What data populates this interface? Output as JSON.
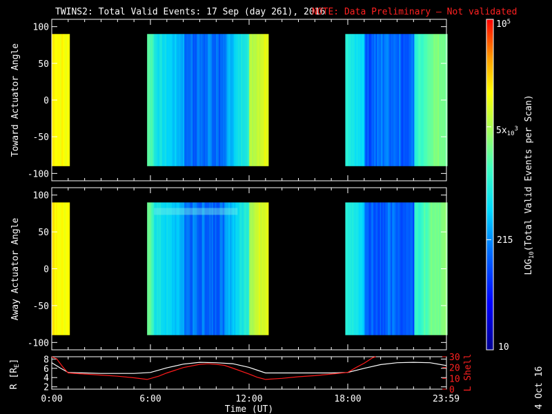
{
  "title": {
    "main": "TWINS2: Total Valid Events: 17 Sep (day 261), 2016",
    "note": "NOTE: Data Preliminary – Not validated"
  },
  "stamp": "4 Oct 16",
  "chart_data": [
    {
      "type": "heatmap",
      "name": "toward",
      "ylabel": "Toward Actuator Angle",
      "ylim": [
        -110,
        110
      ],
      "yticks": [
        100,
        50,
        0,
        -50,
        -100
      ],
      "data_yrange": [
        -90,
        90
      ],
      "xlim": [
        0,
        24
      ],
      "intervals": [
        [
          0,
          1.05
        ],
        [
          5.8,
          13.15
        ],
        [
          17.85,
          24
        ]
      ]
    },
    {
      "type": "heatmap",
      "name": "away",
      "ylabel": "Away Actuator Angle",
      "ylim": [
        -110,
        110
      ],
      "yticks": [
        100,
        50,
        0,
        -50,
        -100
      ],
      "data_yrange": [
        -90,
        90
      ],
      "xlim": [
        0,
        24
      ],
      "intervals": [
        [
          0,
          1.05
        ],
        [
          5.8,
          13.15
        ],
        [
          17.85,
          24
        ]
      ]
    },
    {
      "type": "line",
      "name": "orbit",
      "ylabel_left": "R [R",
      "ylabel_left_sub": "E",
      "ylabel_left_end": "]",
      "ylabel_right": "L Shell",
      "xlabel": "Time (UT)",
      "ylim_left": [
        1.5,
        8.5
      ],
      "yticks_left": [
        8,
        6,
        4,
        2
      ],
      "ylim_right": [
        0,
        30
      ],
      "yticks_right": [
        30,
        20,
        10,
        0
      ],
      "xlim": [
        0,
        24
      ],
      "xtick_labels": [
        "0:00",
        "6:00",
        "12:00",
        "18:00",
        "23:59"
      ],
      "xtick_values": [
        0,
        6,
        12,
        18,
        23.98
      ],
      "series": [
        {
          "axis": "left",
          "color": "#ffffff",
          "x": [
            0,
            0.5,
            1,
            2,
            3,
            4,
            5,
            6,
            7,
            8,
            9,
            10,
            11,
            12,
            12.5,
            13,
            14,
            15,
            16,
            17,
            18,
            19,
            20,
            21,
            22,
            23,
            24
          ],
          "y": [
            7.2,
            6.1,
            5.1,
            5.0,
            4.9,
            4.9,
            4.9,
            5.1,
            6.1,
            6.9,
            7.3,
            7.2,
            7.0,
            6.2,
            5.6,
            5.0,
            5.0,
            5.0,
            5.0,
            5.0,
            5.1,
            6.0,
            6.8,
            7.2,
            7.3,
            7.2,
            6.6
          ]
        },
        {
          "axis": "right",
          "color": "#ff1a1a",
          "x": [
            0,
            0.3,
            0.7,
            1,
            2,
            3,
            4,
            5,
            5.8,
            6.5,
            7,
            8,
            9,
            9.5,
            10,
            10.5,
            11,
            12,
            12.5,
            13,
            14,
            15,
            16,
            17,
            18,
            18.5,
            19,
            19.5,
            19.7
          ],
          "y": [
            30,
            28,
            20,
            15,
            14,
            13,
            12,
            10.5,
            9,
            12,
            15,
            20,
            23,
            23.5,
            23,
            22,
            19.5,
            14,
            11,
            9,
            10,
            11.5,
            12.5,
            14,
            15.5,
            20,
            24,
            29,
            31
          ]
        }
      ]
    },
    {
      "type": "colorbar",
      "label_main": "LOG",
      "label_sub": "10",
      "label_rest": "(Total Valid Events per Scan)",
      "scale": "log",
      "range": [
        10,
        100000
      ],
      "tick_10": "10",
      "tick_215": "215",
      "tick_5e3_base": "5x",
      "tick_5e3_sup": "10",
      "tick_5e3_exp": "3",
      "tick_1e5_base": "10",
      "tick_1e5_exp": "5"
    }
  ]
}
